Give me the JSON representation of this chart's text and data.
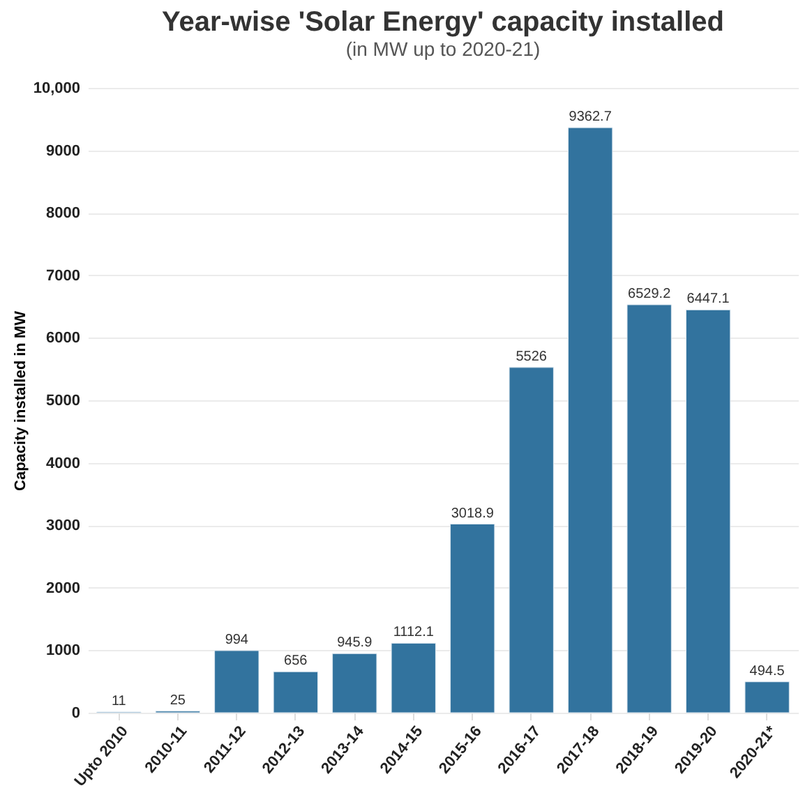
{
  "chart_data": {
    "type": "bar",
    "title": "Year-wise 'Solar Energy' capacity installed",
    "subtitle": "(in MW up to 2020-21)",
    "ylabel": "Capacity installed in MW",
    "categories": [
      "Upto 2010",
      "2010-11",
      "2011-12",
      "2012-13",
      "2013-14",
      "2014-15",
      "2015-16",
      "2016-17",
      "2017-18",
      "2018-19",
      "2019-20",
      "2020-21*"
    ],
    "values": [
      11,
      25,
      994,
      656,
      945.9,
      1112.1,
      3018.9,
      5526,
      9362.7,
      6529.2,
      6447.1,
      494.5
    ],
    "color": "#32739e",
    "ylim": [
      0,
      10000
    ],
    "yticks": [
      0,
      1000,
      2000,
      3000,
      4000,
      5000,
      6000,
      7000,
      8000,
      9000,
      {
        "value": 10000,
        "label": "10,000"
      }
    ],
    "grid": "y",
    "data_labels": true
  }
}
